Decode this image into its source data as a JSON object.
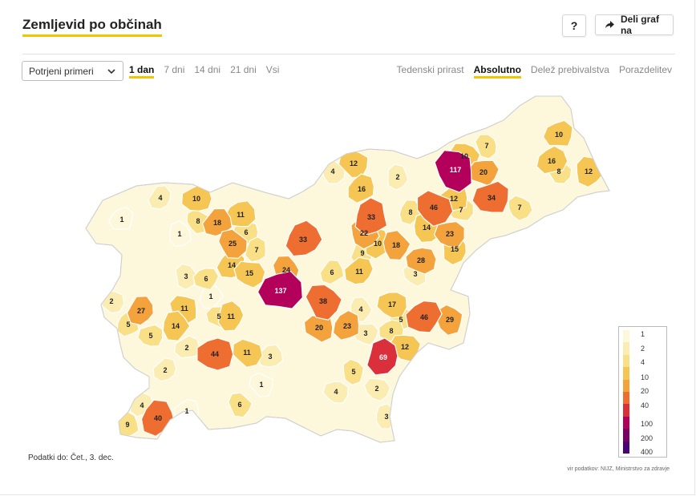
{
  "header": {
    "title": "Zemljevid po občinah",
    "help_label": "?",
    "share_label": "Deli graf na"
  },
  "filters": {
    "metric_select": "Potrjeni primeri",
    "periods": [
      "1 dan",
      "7 dni",
      "14 dni",
      "21 dni",
      "Vsi"
    ],
    "active_period": 0,
    "modes": [
      "Tedenski prirast",
      "Absolutno",
      "Delež prebivalstva",
      "Porazdelitev"
    ],
    "active_mode": 1
  },
  "legend": {
    "labels": [
      "1",
      "2",
      "4",
      "10",
      "20",
      "40",
      "100",
      "200",
      "400"
    ],
    "colors": [
      "#fdf7dc",
      "#fbecb2",
      "#f9df86",
      "#f6c654",
      "#f3a23c",
      "#ee6d30",
      "#d9303b",
      "#b3005a",
      "#7a0066",
      "#4b0078"
    ]
  },
  "footer": {
    "date_note": "Podatki do: Čet., 3. dec.",
    "source": "vir podatkov: NIJZ, Ministrstvo za zdravje"
  },
  "map": {
    "region": "Slovenia",
    "municipality_values": [
      117,
      137,
      69,
      46,
      46,
      44,
      40,
      38,
      34,
      33,
      33,
      29,
      28,
      27,
      25,
      24,
      23,
      23,
      22,
      20,
      20,
      18,
      18,
      17,
      16,
      16,
      15,
      15,
      14,
      14,
      14,
      12,
      12,
      12,
      12,
      11,
      11,
      11,
      11,
      11,
      10,
      10,
      10,
      10,
      9,
      9,
      8,
      8,
      8,
      8,
      7,
      7,
      7,
      7,
      6,
      6,
      6,
      6,
      5,
      5,
      5,
      5,
      5,
      4,
      4,
      4,
      4,
      4,
      3,
      3,
      3,
      3,
      3,
      2,
      2,
      2,
      2,
      2,
      1,
      1,
      1,
      1,
      1
    ]
  }
}
